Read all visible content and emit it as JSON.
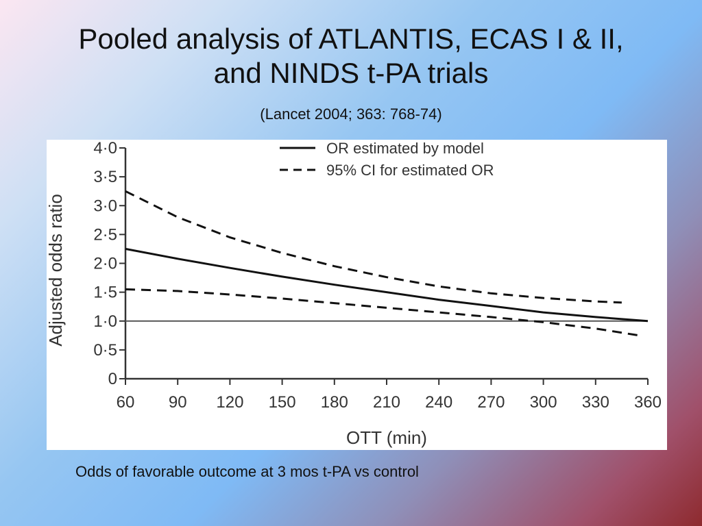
{
  "slide": {
    "title_line1": "Pooled analysis of ATLANTIS, ECAS I & II,",
    "title_line2": "and NINDS t-PA trials",
    "subtitle": "(Lancet 2004; 363: 768-74)",
    "caption": "Odds of favorable outcome at 3 mos t-PA vs control"
  },
  "chart_data": {
    "type": "line",
    "xlabel": "OTT (min)",
    "ylabel": "Adjusted odds ratio",
    "xlim": [
      60,
      360
    ],
    "ylim": [
      0,
      4
    ],
    "x_ticks": [
      "60",
      "90",
      "120",
      "150",
      "180",
      "210",
      "240",
      "270",
      "300",
      "330",
      "360"
    ],
    "y_ticks": [
      "0",
      "0·5",
      "1·0",
      "1·5",
      "2·0",
      "2·5",
      "3·0",
      "3·5",
      "4·0"
    ],
    "reference_line": 1.0,
    "grid": false,
    "legend_position": "top-right",
    "series": [
      {
        "name": "OR estimated by model",
        "style": "solid",
        "x": [
          60,
          90,
          120,
          150,
          180,
          210,
          240,
          270,
          300,
          330,
          360
        ],
        "y": [
          2.25,
          2.08,
          1.92,
          1.77,
          1.63,
          1.5,
          1.37,
          1.26,
          1.15,
          1.07,
          1.0
        ]
      },
      {
        "name": "95% CI for estimated OR",
        "style": "dashed",
        "x": [
          60,
          90,
          120,
          150,
          180,
          210,
          240,
          270,
          300,
          330,
          345
        ],
        "y": [
          3.25,
          2.8,
          2.45,
          2.18,
          1.95,
          1.76,
          1.6,
          1.48,
          1.4,
          1.34,
          1.32
        ]
      },
      {
        "style": "dashed",
        "x": [
          60,
          90,
          120,
          150,
          180,
          210,
          240,
          270,
          300,
          330,
          355
        ],
        "y": [
          1.55,
          1.52,
          1.46,
          1.39,
          1.31,
          1.23,
          1.15,
          1.07,
          0.98,
          0.87,
          0.75
        ]
      }
    ]
  },
  "colors": {
    "line": "#111111",
    "axis": "#333333",
    "reference": "#555555"
  }
}
